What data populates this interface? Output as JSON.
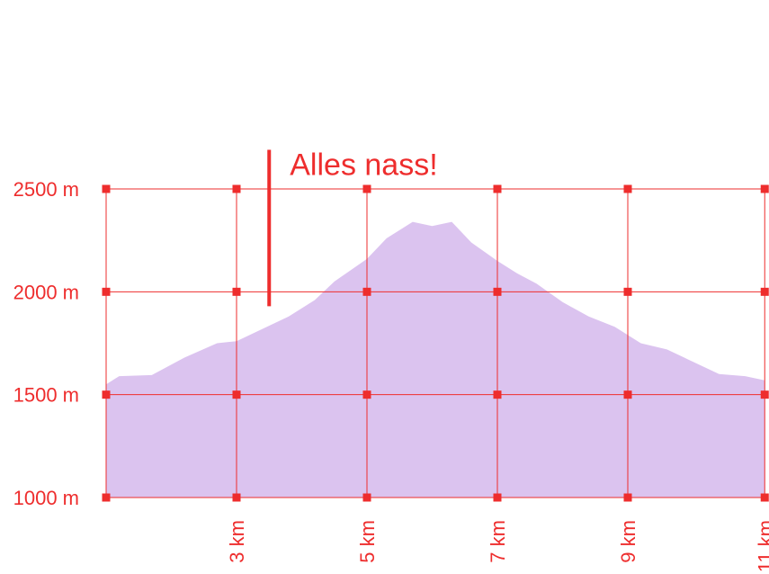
{
  "chart_data": {
    "type": "area",
    "colors": {
      "accent": "#ee2d2d",
      "fill": "#dbc3ef"
    },
    "y_ticks": [
      {
        "value": 1000,
        "label": "1000 m"
      },
      {
        "value": 1500,
        "label": "1500 m"
      },
      {
        "value": 2000,
        "label": "2000 m"
      },
      {
        "value": 2500,
        "label": "2500 m"
      }
    ],
    "x_ticks": [
      {
        "value": 3,
        "label": "3 km"
      },
      {
        "value": 5,
        "label": "5 km"
      },
      {
        "value": 7,
        "label": "7 km"
      },
      {
        "value": 9,
        "label": "9 km"
      },
      {
        "value": 11,
        "label": "11 km"
      }
    ],
    "xlim": [
      1,
      11.1
    ],
    "ylim": [
      1000,
      2500
    ],
    "annotation": {
      "x": 3.5,
      "y_top": 2690,
      "y_bottom": 1930,
      "text": "Alles nass!"
    },
    "series": [
      {
        "x": [
          1.0,
          1.2,
          1.7,
          2.2,
          2.7,
          3.0,
          3.4,
          3.8,
          4.2,
          4.5,
          5.0,
          5.3,
          5.7,
          6.0,
          6.3,
          6.6,
          7.0,
          7.3,
          7.6,
          8.0,
          8.4,
          8.8,
          9.2,
          9.6,
          10.0,
          10.4,
          10.8,
          11.1
        ],
        "y": [
          1550,
          1590,
          1595,
          1680,
          1750,
          1760,
          1820,
          1880,
          1960,
          2050,
          2160,
          2260,
          2340,
          2320,
          2340,
          2240,
          2150,
          2090,
          2040,
          1950,
          1880,
          1830,
          1750,
          1720,
          1660,
          1600,
          1590,
          1570
        ]
      }
    ]
  }
}
